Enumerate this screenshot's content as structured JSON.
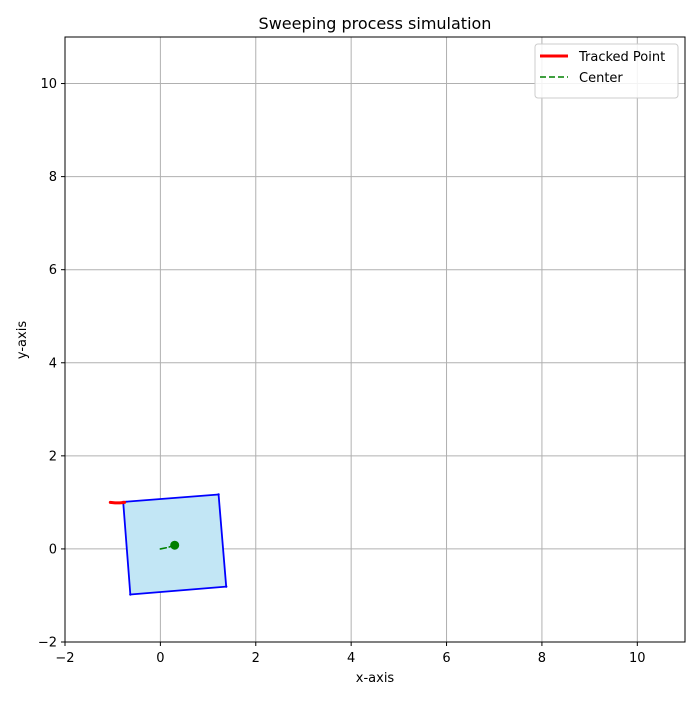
{
  "chart_data": {
    "type": "line",
    "title": "Sweeping process simulation",
    "xlabel": "x-axis",
    "ylabel": "y-axis",
    "xlim": [
      -2,
      11
    ],
    "ylim": [
      -2,
      11
    ],
    "xticks": [
      -2,
      0,
      2,
      4,
      6,
      8,
      10
    ],
    "yticks": [
      -2,
      0,
      2,
      4,
      6,
      8,
      10
    ],
    "xtick_labels": [
      "−2",
      "0",
      "2",
      "4",
      "6",
      "8",
      "10"
    ],
    "ytick_labels": [
      "−2",
      "0",
      "2",
      "4",
      "6",
      "8",
      "10"
    ],
    "grid": true,
    "legend_position": "top-right",
    "series": [
      {
        "name": "Tracked Point",
        "style": "solid",
        "color": "#ff0000",
        "points": [
          [
            -1.05,
            1.0
          ],
          [
            -0.95,
            0.99
          ],
          [
            -0.85,
            0.99
          ],
          [
            -0.75,
            1.0
          ]
        ]
      },
      {
        "name": "Center",
        "style": "dashed",
        "color": "#008000",
        "points": [
          [
            0.0,
            0.0
          ],
          [
            0.15,
            0.03
          ],
          [
            0.3,
            0.08
          ]
        ]
      }
    ],
    "square": {
      "vertices": [
        [
          -0.78,
          1.01
        ],
        [
          1.22,
          1.17
        ],
        [
          1.38,
          -0.81
        ],
        [
          -0.63,
          -0.98
        ]
      ],
      "fill": "#c2e6f5",
      "edge": "#0000ff"
    },
    "center_marker": {
      "x": 0.3,
      "y": 0.08,
      "color": "#008000"
    }
  }
}
